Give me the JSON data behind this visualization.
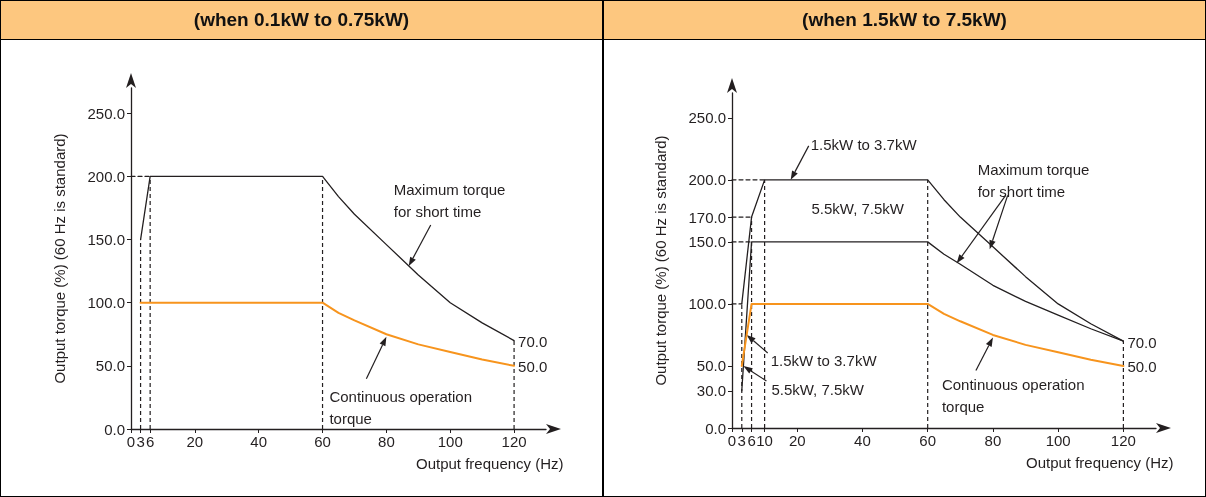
{
  "chart_data": [
    {
      "type": "line",
      "title": "(when 0.1kW to 0.75kW)",
      "xlabel": "Output frequency (Hz)",
      "ylabel": "Output torque (%) (60 Hz is standard)",
      "xlim": [
        0,
        130
      ],
      "xticks": [
        0,
        3,
        6,
        20,
        40,
        60,
        80,
        100,
        120
      ],
      "ylim": [
        0,
        270
      ],
      "yticks": [
        {
          "value": 0,
          "label": "0.0"
        },
        {
          "value": 50,
          "label": "50.0"
        },
        {
          "value": 100,
          "label": "100.0"
        },
        {
          "value": 150,
          "label": "150.0"
        },
        {
          "value": 200,
          "label": "200.0"
        },
        {
          "value": 250,
          "label": "250.0"
        }
      ],
      "grid": false,
      "marker": "none",
      "line_style": "solid",
      "series": [
        {
          "color": "#231f20",
          "x": [
            3,
            6,
            60,
            65,
            70,
            80,
            90,
            100,
            110,
            120
          ],
          "values": [
            150,
            200,
            200,
            184,
            170,
            146,
            122,
            100,
            84,
            70
          ]
        },
        {
          "color": "#231f20",
          "line_style": "dashed",
          "x": [
            0,
            6
          ],
          "values": [
            200,
            200
          ]
        },
        {
          "color": "#f7941d",
          "x": [
            3,
            60,
            65,
            70,
            80,
            90,
            100,
            110,
            120
          ],
          "values": [
            100,
            100,
            92,
            86,
            75,
            67,
            61,
            55,
            50
          ]
        }
      ],
      "ref_lines": [
        {
          "axis": "x",
          "value": 3,
          "line_style": "dashed"
        },
        {
          "axis": "x",
          "value": 6,
          "line_style": "dashed"
        },
        {
          "axis": "x",
          "value": 60,
          "line_style": "dashed"
        },
        {
          "axis": "x",
          "value": 120,
          "line_style": "dashed"
        }
      ],
      "annotations": [
        {
          "text": "Maximum torque for short time",
          "x": 87,
          "y": 129
        },
        {
          "text": "Continuous operation torque",
          "x": 80,
          "y": 73
        },
        {
          "text": "70.0",
          "x": 120,
          "y": 70
        },
        {
          "text": "50.0",
          "x": 120,
          "y": 50
        }
      ]
    },
    {
      "type": "line",
      "title": "(when 1.5kW to 7.5kW)",
      "xlabel": "Output frequency (Hz)",
      "ylabel": "Output torque (%) (60 Hz is standard)",
      "xlim": [
        0,
        130
      ],
      "xticks": [
        0,
        3,
        6,
        10,
        20,
        40,
        60,
        80,
        100,
        120
      ],
      "ylim": [
        0,
        270
      ],
      "yticks": [
        {
          "value": 0,
          "label": "0.0"
        },
        {
          "value": 30,
          "label": "30.0"
        },
        {
          "value": 50,
          "label": "50.0"
        },
        {
          "value": 100,
          "label": "100.0"
        },
        {
          "value": 150,
          "label": "150.0"
        },
        {
          "value": 170,
          "label": "170.0"
        },
        {
          "value": 200,
          "label": "200.0"
        },
        {
          "value": 250,
          "label": "250.0"
        }
      ],
      "grid": false,
      "marker": "none",
      "line_style": "solid",
      "series": [
        {
          "color": "#231f20",
          "line_style": "dashed",
          "x": [
            0,
            10
          ],
          "values": [
            200,
            200
          ]
        },
        {
          "color": "#231f20",
          "line_style": "dashed",
          "x": [
            0,
            6
          ],
          "values": [
            170,
            170
          ]
        },
        {
          "color": "#231f20",
          "line_style": "dashed",
          "x": [
            0,
            6
          ],
          "values": [
            150,
            150
          ]
        },
        {
          "color": "#231f20",
          "line_style": "dashed",
          "x": [
            0,
            3
          ],
          "values": [
            100,
            100
          ]
        },
        {
          "color": "#231f20",
          "x": [
            3,
            6,
            10,
            60,
            65,
            70,
            80,
            90,
            100,
            110,
            120
          ],
          "values": [
            100,
            170,
            200,
            200,
            184,
            170,
            146,
            122,
            100,
            84,
            70
          ]
        },
        {
          "color": "#231f20",
          "x": [
            3,
            6,
            60,
            65,
            70,
            80,
            90,
            100,
            110,
            120
          ],
          "values": [
            30,
            150,
            150,
            140,
            132,
            115,
            102,
            91,
            80,
            70
          ]
        },
        {
          "color": "#f7941d",
          "x": [
            3,
            6,
            60,
            65,
            70,
            80,
            90,
            100,
            110,
            120
          ],
          "values": [
            50,
            100,
            100,
            92,
            86,
            75,
            67,
            61,
            55,
            50
          ]
        }
      ],
      "ref_lines": [
        {
          "axis": "x",
          "value": 3,
          "line_style": "dashed"
        },
        {
          "axis": "x",
          "value": 6,
          "line_style": "dashed"
        },
        {
          "axis": "x",
          "value": 10,
          "line_style": "dashed"
        },
        {
          "axis": "x",
          "value": 60,
          "line_style": "dashed"
        },
        {
          "axis": "x",
          "value": 120,
          "line_style": "dashed"
        }
      ],
      "annotations": [
        {
          "text": "1.5kW to 3.7kW",
          "x": 18,
          "y": 200
        },
        {
          "text": "5.5kW, 7.5kW",
          "x": 40,
          "y": 150
        },
        {
          "text": "Maximum torque for short time",
          "x": 79,
          "y": 144
        },
        {
          "text": "Continuous operation torque",
          "x": 80,
          "y": 73
        },
        {
          "text": "1.5kW to 3.7kW",
          "x": 4.5,
          "y": 75
        },
        {
          "text": "5.5kW, 7.5kW",
          "x": 3.5,
          "y": 50
        },
        {
          "text": "70.0",
          "x": 120,
          "y": 70
        },
        {
          "text": "50.0",
          "x": 120,
          "y": 50
        }
      ]
    }
  ]
}
